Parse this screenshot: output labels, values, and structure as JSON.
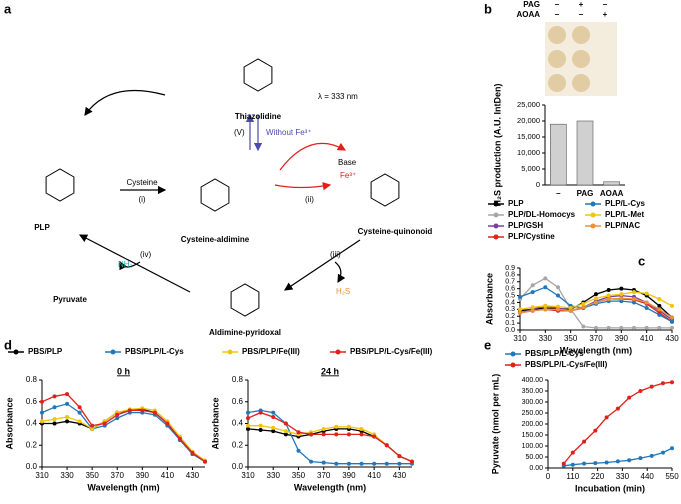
{
  "panel_labels": [
    "a",
    "b",
    "c",
    "d",
    "e"
  ],
  "scheme": {
    "thiazolidine": "Thiazolidine",
    "lambda": "λ = 333 nm",
    "step_v": "(V)",
    "without_fe": "Without Fe³⁺",
    "base": "Base",
    "fe": "Fe³⁺",
    "step_ii": "(ii)",
    "quinonoid": "Cysteine-quinonoid",
    "aldimine": "Cysteine-aldimine",
    "cysteine": "Cysteine",
    "step_i": "(i)",
    "plp": "PLP",
    "step_iii": "(iii)",
    "h2s": "H₂S",
    "step_iv": "(iv)",
    "pyruvate": "Pyruvate",
    "nh3": "NH₃",
    "aldimine_pyridoxal": "Aldimine-pyridoxal"
  },
  "chart_data": [
    {
      "type": "bar",
      "ylabel": "H₂S production (A.U. IntDen)",
      "treatments": {
        "rows": [
          [
            "PAG",
            "–",
            "+",
            "–"
          ],
          [
            "AOAA",
            "–",
            "–",
            "+"
          ]
        ]
      },
      "categories": [
        "–",
        "PAG",
        "AOAA"
      ],
      "values": [
        19000,
        20000,
        1000
      ],
      "color": "#d0d0d0",
      "ylim": [
        0,
        25000
      ],
      "yticks": [
        0,
        {
          "value": 5000,
          "label": "5,000"
        },
        {
          "value": 10000,
          "label": "10,000"
        },
        {
          "value": 15000,
          "label": "15,000"
        },
        {
          "value": 20000,
          "label": "20,000"
        },
        {
          "value": 25000,
          "label": "25,000"
        }
      ]
    },
    {
      "type": "line",
      "xlabel": "Wavelength (nm)",
      "ylabel": "Absorbance",
      "x": [
        310,
        320,
        330,
        340,
        350,
        360,
        370,
        380,
        390,
        400,
        410,
        420,
        430
      ],
      "series": [
        {
          "name": "PLP",
          "color": "#000000",
          "values": [
            0.28,
            0.3,
            0.32,
            0.31,
            0.3,
            0.4,
            0.52,
            0.58,
            0.6,
            0.58,
            0.5,
            0.35,
            0.18
          ]
        },
        {
          "name": "PLP/DL-Homocys",
          "color": "#a6a6a6",
          "values": [
            0.45,
            0.65,
            0.75,
            0.62,
            0.3,
            0.05,
            0.03,
            0.03,
            0.03,
            0.03,
            0.03,
            0.03,
            0.03
          ]
        },
        {
          "name": "PLP/GSH",
          "color": "#7b3f9e",
          "values": [
            0.25,
            0.3,
            0.35,
            0.32,
            0.28,
            0.33,
            0.42,
            0.48,
            0.5,
            0.48,
            0.4,
            0.28,
            0.15
          ]
        },
        {
          "name": "PLP/Cystine",
          "color": "#e0201b",
          "values": [
            0.25,
            0.28,
            0.3,
            0.28,
            0.28,
            0.32,
            0.4,
            0.45,
            0.45,
            0.44,
            0.38,
            0.25,
            0.12
          ]
        },
        {
          "name": "PLP/L-Cys",
          "color": "#2277bb",
          "values": [
            0.48,
            0.55,
            0.62,
            0.5,
            0.35,
            0.32,
            0.38,
            0.42,
            0.42,
            0.4,
            0.32,
            0.22,
            0.12
          ]
        },
        {
          "name": "PLP/L-Met",
          "color": "#f2c40f",
          "values": [
            0.3,
            0.33,
            0.35,
            0.34,
            0.32,
            0.38,
            0.46,
            0.5,
            0.52,
            0.55,
            0.53,
            0.45,
            0.35
          ]
        },
        {
          "name": "PLP/NAC",
          "color": "#e8923a",
          "values": [
            0.25,
            0.28,
            0.3,
            0.3,
            0.28,
            0.33,
            0.4,
            0.45,
            0.46,
            0.45,
            0.4,
            0.3,
            0.18
          ]
        }
      ],
      "xlim": [
        310,
        430
      ],
      "xticks": [
        310,
        330,
        350,
        370,
        390,
        410,
        430
      ],
      "ylim": [
        0,
        0.9
      ],
      "yticks": [
        {
          "value": 0,
          "label": "0.0"
        },
        0.1,
        0.2,
        0.3,
        0.4,
        0.5,
        0.6,
        0.7,
        0.8,
        0.9
      ]
    },
    {
      "type": "line",
      "title": "0 h",
      "xlabel": "Wavelength (nm)",
      "ylabel": "Absorbance",
      "x": [
        310,
        320,
        330,
        340,
        350,
        360,
        370,
        380,
        390,
        400,
        410,
        420,
        430,
        440
      ],
      "series": [
        {
          "name": "PBS/PLP",
          "color": "#000000",
          "values": [
            0.4,
            0.4,
            0.42,
            0.4,
            0.35,
            0.42,
            0.5,
            0.52,
            0.53,
            0.5,
            0.4,
            0.25,
            0.12,
            0.05
          ]
        },
        {
          "name": "PBS/PLP/L-Cys",
          "color": "#2277bb",
          "values": [
            0.5,
            0.55,
            0.58,
            0.5,
            0.35,
            0.38,
            0.45,
            0.5,
            0.5,
            0.48,
            0.38,
            0.25,
            0.12,
            0.05
          ]
        },
        {
          "name": "PBS/PLP/Fe(III)",
          "color": "#f2c40f",
          "values": [
            0.42,
            0.44,
            0.46,
            0.42,
            0.35,
            0.42,
            0.5,
            0.53,
            0.54,
            0.52,
            0.42,
            0.28,
            0.14,
            0.06
          ]
        },
        {
          "name": "PBS/PLP/L-Cys/Fe(III)",
          "color": "#e0201b",
          "values": [
            0.6,
            0.65,
            0.67,
            0.55,
            0.38,
            0.4,
            0.48,
            0.52,
            0.52,
            0.5,
            0.4,
            0.26,
            0.13,
            0.05
          ]
        }
      ],
      "xlim": [
        310,
        440
      ],
      "xticks": [
        310,
        330,
        350,
        370,
        390,
        410,
        430
      ],
      "ylim": [
        0,
        0.8
      ],
      "yticks": [
        {
          "value": 0,
          "label": "0.0"
        },
        0.2,
        0.4,
        0.6,
        0.8
      ]
    },
    {
      "type": "line",
      "title": "24 h",
      "xlabel": "Wavelength (nm)",
      "ylabel": "Absorbance",
      "x": [
        310,
        320,
        330,
        340,
        350,
        360,
        370,
        380,
        390,
        400,
        410,
        420,
        430,
        440
      ],
      "series": [
        {
          "color": "#000000",
          "values": [
            0.35,
            0.34,
            0.33,
            0.3,
            0.28,
            0.3,
            0.33,
            0.35,
            0.35,
            0.33,
            0.28,
            0.2,
            0.1,
            0.05
          ]
        },
        {
          "color": "#2277bb",
          "values": [
            0.5,
            0.52,
            0.5,
            0.4,
            0.15,
            0.05,
            0.04,
            0.03,
            0.03,
            0.03,
            0.03,
            0.03,
            0.03,
            0.03
          ]
        },
        {
          "color": "#f2c40f",
          "values": [
            0.38,
            0.38,
            0.36,
            0.33,
            0.3,
            0.32,
            0.35,
            0.37,
            0.37,
            0.35,
            0.3,
            0.2,
            0.1,
            0.05
          ]
        },
        {
          "color": "#e0201b",
          "values": [
            0.45,
            0.5,
            0.46,
            0.4,
            0.32,
            0.3,
            0.3,
            0.3,
            0.3,
            0.3,
            0.28,
            0.2,
            0.1,
            0.05
          ]
        }
      ],
      "xlim": [
        310,
        440
      ],
      "xticks": [
        310,
        330,
        350,
        370,
        390,
        410,
        430
      ],
      "ylim": [
        0,
        0.8
      ],
      "yticks": [
        {
          "value": 0,
          "label": "0.0"
        },
        0.2,
        0.4,
        0.6,
        0.8
      ]
    },
    {
      "type": "line",
      "xlabel": "Incubation (min)",
      "ylabel": "Pyruvate (nmol per mL)",
      "x": [
        70,
        110,
        160,
        210,
        260,
        310,
        360,
        410,
        460,
        510,
        550
      ],
      "series": [
        {
          "name": "PBS/PLP/L-Cys",
          "color": "#2277bb",
          "values": [
            10,
            15,
            20,
            22,
            25,
            30,
            35,
            45,
            55,
            70,
            90
          ]
        },
        {
          "name": "PBS/PLP/L-Cys/Fe(III)",
          "color": "#e0201b",
          "values": [
            20,
            70,
            120,
            170,
            230,
            270,
            320,
            350,
            370,
            385,
            390
          ]
        }
      ],
      "xlim": [
        0,
        550
      ],
      "xticks": [
        0,
        110,
        220,
        330,
        440,
        550
      ],
      "ylim": [
        0,
        400
      ],
      "yticks": [
        {
          "value": 0,
          "label": "0.00"
        },
        {
          "value": 50,
          "label": "50.00"
        },
        {
          "value": 100,
          "label": "100.00"
        },
        {
          "value": 150,
          "label": "150.00"
        },
        {
          "value": 200,
          "label": "200.00"
        },
        {
          "value": 250,
          "label": "250.00"
        },
        {
          "value": 300,
          "label": "300.00"
        },
        {
          "value": 350,
          "label": "350.00"
        },
        {
          "value": 400,
          "label": "400.00"
        }
      ]
    }
  ]
}
